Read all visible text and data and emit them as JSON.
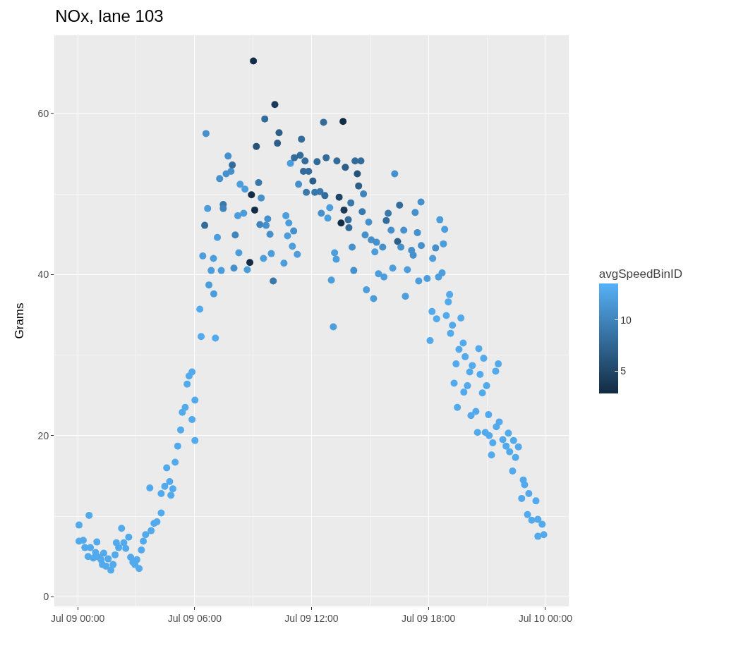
{
  "chart_data": {
    "type": "scatter",
    "title": "NOx, lane 103",
    "ylabel": "Grams",
    "clabel": "avgSpeedBinID",
    "marker": "circle",
    "grid": true,
    "xlim": [
      "--07-08T22:48",
      "--07-10T01:12"
    ],
    "xticks": [
      {
        "value": "--07-09T00:00",
        "label": "Jul 09 00:00"
      },
      {
        "value": "--07-09T06:00",
        "label": "Jul 09 06:00"
      },
      {
        "value": "--07-09T12:00",
        "label": "Jul 09 12:00"
      },
      {
        "value": "--07-09T18:00",
        "label": "Jul 09 18:00"
      },
      {
        "value": "--07-10T00:00",
        "label": "Jul 10 00:00"
      }
    ],
    "ylim": [
      -1.2,
      69.7
    ],
    "yticks": [
      0,
      20,
      40,
      60
    ],
    "clim": [
      2.8,
      13.6
    ],
    "cticks": [
      5,
      10
    ],
    "x": [
      "--07-09T00:04",
      "--07-09T00:04",
      "--07-09T00:17",
      "--07-09T00:22",
      "--07-09T00:35",
      "--07-09T00:32",
      "--07-09T00:39",
      "--07-09T00:48",
      "--07-09T00:55",
      "--07-09T00:59",
      "--07-09T01:05",
      "--07-09T01:12",
      "--07-09T01:16",
      "--07-09T01:20",
      "--07-09T01:27",
      "--07-09T01:34",
      "--07-09T01:42",
      "--07-09T01:49",
      "--07-09T01:55",
      "--07-09T01:59",
      "--07-09T02:06",
      "--07-09T02:15",
      "--07-09T02:22",
      "--07-09T02:28",
      "--07-09T02:37",
      "--07-09T02:43",
      "--07-09T02:50",
      "--07-09T02:56",
      "--07-09T03:02",
      "--07-09T03:09",
      "--07-09T03:16",
      "--07-09T03:22",
      "--07-09T03:29",
      "--07-09T03:42",
      "--07-09T03:46",
      "--07-09T03:55",
      "--07-09T04:04",
      "--07-09T04:17",
      "--07-09T04:17",
      "--07-09T04:28",
      "--07-09T04:34",
      "--07-09T04:43",
      "--07-09T04:47",
      "--07-09T04:53",
      "--07-09T05:00",
      "--07-09T05:08",
      "--07-09T05:17",
      "--07-09T05:22",
      "--07-09T05:31",
      "--07-09T05:37",
      "--07-09T05:43",
      "--07-09T05:52",
      "--07-09T06:01",
      "--07-09T06:01",
      "--07-09T05:52",
      "--07-09T06:16",
      "--07-09T06:20",
      "--07-09T06:25",
      "--07-09T06:31",
      "--07-09T06:35",
      "--07-09T06:40",
      "--07-09T06:44",
      "--07-09T06:51",
      "--07-09T06:58",
      "--07-09T06:59",
      "--07-09T07:04",
      "--07-09T07:10",
      "--07-09T07:17",
      "--07-09T07:22",
      "--07-09T07:28",
      "--07-09T07:28",
      "--07-09T07:37",
      "--07-09T07:43",
      "--07-09T07:52",
      "--07-09T07:56",
      "--07-09T08:01",
      "--07-09T08:05",
      "--07-09T08:16",
      "--07-09T08:13",
      "--07-09T08:20",
      "--07-09T08:31",
      "--07-09T08:35",
      "--07-09T08:42",
      "--07-09T08:50",
      "--07-09T08:55",
      "--07-09T09:01",
      "--07-09T09:05",
      "--07-09T09:10",
      "--07-09T09:17",
      "--07-09T09:21",
      "--07-09T09:25",
      "--07-09T09:32",
      "--07-09T09:36",
      "--07-09T09:40",
      "--07-09T09:45",
      "--07-09T09:52",
      "--07-09T09:56",
      "--07-09T10:02",
      "--07-09T10:07",
      "--07-09T10:15",
      "--07-09T10:20",
      "--07-09T10:35",
      "--07-09T10:41",
      "--07-09T10:46",
      "--07-09T10:50",
      "--07-09T10:55",
      "--07-09T11:01",
      "--07-09T11:05",
      "--07-09T11:07",
      "--07-09T11:16",
      "--07-09T11:20",
      "--07-09T11:25",
      "--07-09T11:29",
      "--07-09T11:35",
      "--07-09T11:40",
      "--07-09T11:44",
      "--07-09T11:51",
      "--07-09T12:04",
      "--07-09T12:10",
      "--07-09T12:17",
      "--07-09T12:26",
      "--07-09T12:30",
      "--07-09T12:37",
      "--07-09T12:41",
      "--07-09T12:45",
      "--07-09T12:50",
      "--07-09T12:56",
      "--07-09T13:01",
      "--07-09T13:07",
      "--07-09T13:11",
      "--07-09T13:16",
      "--07-09T13:18",
      "--07-09T13:25",
      "--07-09T13:31",
      "--07-09T13:37",
      "--07-09T13:40",
      "--07-09T13:44",
      "--07-09T13:53",
      "--07-09T13:55",
      "--07-09T14:01",
      "--07-09T14:05",
      "--07-09T14:10",
      "--07-09T14:14",
      "--07-09T14:25",
      "--07-09T14:21",
      "--07-09T14:32",
      "--07-09T14:36",
      "--07-09T14:40",
      "--07-09T14:45",
      "--07-09T14:49",
      "--07-09T14:56",
      "--07-09T15:04",
      "--07-09T15:11",
      "--07-09T15:15",
      "--07-09T15:20",
      "--07-09T15:26",
      "--07-09T15:39",
      "--07-09T15:43",
      "--07-09T15:50",
      "--07-09T15:56",
      "--07-09T16:05",
      "--07-09T16:16",
      "--07-09T16:25",
      "--07-09T16:31",
      "--07-09T16:35",
      "--07-09T16:10",
      "--07-09T16:44",
      "--07-09T16:49",
      "--07-09T16:55",
      "--07-09T17:08",
      "--07-09T17:13",
      "--07-09T17:19",
      "--07-09T17:26",
      "--07-09T17:30",
      "--07-09T17:37",
      "--07-09T17:38",
      "--07-09T17:56",
      "--07-09T18:05",
      "--07-09T18:11",
      "--07-09T18:13",
      "--07-09T18:22",
      "--07-09T18:25",
      "--07-09T18:35",
      "--07-09T18:42",
      "--07-09T18:46",
      "--07-09T18:50",
      "--07-09T18:31",
      "--07-09T18:55",
      "--07-09T19:01",
      "--07-09T19:05",
      "--07-09T19:14",
      "--07-09T19:08",
      "--07-09T19:40",
      "--07-09T19:47",
      "--07-09T19:34",
      "--07-09T20:35",
      "--07-09T19:53",
      "--07-09T20:50",
      "--07-09T19:25",
      "--07-09T20:15",
      "--07-09T21:35",
      "--07-09T21:27",
      "--07-09T20:07",
      "--07-09T20:39",
      "--07-09T19:19",
      "--07-09T20:00",
      "--07-09T19:49",
      "--07-09T20:59",
      "--07-09T20:46",
      "--07-09T19:29",
      "--07-09T20:26",
      "--07-09T20:11",
      "--07-09T21:05",
      "--07-09T21:38",
      "--07-09T21:29",
      "--07-09T20:31",
      "--07-09T20:55",
      "--07-09T21:07",
      "--07-09T21:18",
      "--07-09T22:06",
      "--07-09T21:49",
      "--07-09T21:59",
      "--07-09T22:22",
      "--07-09T22:37",
      "--07-09T22:10",
      "--07-09T22:28",
      "--07-09T21:14",
      "--07-09T22:19",
      "--07-09T22:52",
      "--07-09T22:56",
      "--07-09T23:09",
      "--07-09T22:47",
      "--07-09T23:31",
      "--07-09T23:05",
      "--07-09T23:18",
      "--07-09T23:37",
      "--07-09T23:50",
      "--07-09T23:37",
      "--07-09T23:55"
    ],
    "values": [
      8.9,
      6.9,
      7.0,
      6.1,
      10.1,
      5.0,
      6.1,
      4.8,
      5.5,
      6.8,
      4.9,
      4.6,
      4.0,
      5.4,
      3.8,
      4.7,
      3.3,
      4.0,
      5.2,
      6.7,
      6.1,
      8.5,
      6.7,
      6.0,
      7.4,
      4.9,
      4.3,
      4.0,
      4.6,
      3.5,
      5.8,
      6.9,
      7.7,
      13.5,
      8.2,
      9.1,
      9.3,
      10.4,
      12.8,
      13.7,
      16.0,
      14.3,
      12.6,
      13.4,
      16.7,
      18.7,
      20.7,
      22.9,
      23.5,
      26.4,
      27.4,
      27.9,
      24.4,
      19.4,
      22.0,
      35.7,
      32.3,
      42.3,
      46.1,
      57.5,
      48.2,
      38.7,
      40.5,
      42.0,
      37.6,
      32.1,
      44.6,
      51.9,
      40.5,
      48.7,
      48.2,
      52.5,
      54.7,
      52.8,
      53.6,
      40.8,
      44.9,
      42.7,
      47.3,
      51.2,
      47.6,
      50.6,
      40.6,
      41.5,
      49.9,
      66.5,
      48.0,
      55.9,
      51.4,
      46.2,
      49.5,
      42.0,
      59.3,
      46.1,
      46.9,
      45.0,
      42.6,
      39.2,
      61.1,
      56.3,
      57.6,
      41.4,
      47.3,
      44.8,
      46.4,
      53.8,
      43.5,
      45.4,
      54.5,
      42.5,
      51.2,
      54.8,
      56.8,
      52.8,
      54.1,
      50.2,
      52.8,
      51.6,
      50.2,
      54.0,
      50.3,
      47.6,
      58.9,
      49.8,
      54.5,
      47.0,
      48.3,
      39.3,
      33.5,
      42.7,
      41.9,
      54.1,
      49.6,
      46.4,
      59.0,
      48.0,
      53.3,
      46.8,
      45.8,
      48.9,
      43.4,
      40.5,
      54.1,
      51.0,
      52.5,
      54.1,
      47.8,
      50.0,
      44.9,
      38.1,
      46.5,
      44.3,
      37.0,
      42.8,
      44.0,
      40.1,
      43.4,
      39.7,
      46.7,
      47.6,
      45.5,
      52.5,
      44.1,
      48.6,
      43.4,
      40.8,
      45.5,
      37.3,
      40.6,
      43.0,
      42.4,
      47.7,
      45.2,
      39.2,
      49.0,
      43.6,
      39.5,
      31.8,
      35.4,
      42.0,
      43.3,
      34.5,
      46.8,
      40.2,
      43.8,
      45.6,
      39.7,
      34.9,
      36.6,
      37.5,
      33.7,
      32.7,
      34.6,
      31.5,
      30.7,
      30.8,
      29.8,
      29.6,
      28.9,
      28.7,
      28.9,
      28.0,
      27.9,
      27.6,
      26.5,
      26.2,
      25.4,
      26.2,
      25.3,
      23.5,
      23.0,
      22.5,
      22.6,
      21.7,
      21.1,
      20.4,
      20.4,
      20.0,
      19.1,
      20.3,
      19.5,
      18.7,
      19.4,
      18.6,
      18.0,
      17.3,
      17.6,
      15.6,
      14.5,
      13.9,
      12.8,
      12.2,
      11.9,
      10.2,
      9.5,
      9.6,
      9.0,
      7.5,
      7.7
    ],
    "cvalues": [
      13,
      13,
      13,
      13,
      13,
      13,
      13,
      13,
      13,
      13,
      13,
      13,
      13,
      13,
      13,
      13,
      13,
      13,
      13,
      13,
      13,
      13,
      13,
      13,
      13,
      13,
      13,
      13,
      13,
      13,
      13,
      13,
      13,
      13,
      13,
      13,
      13,
      13,
      13,
      13,
      13,
      13,
      13,
      13,
      13,
      13,
      13,
      13,
      13,
      13,
      13,
      13,
      13,
      13,
      13,
      13,
      13,
      12,
      8,
      11,
      12,
      12,
      12,
      12,
      12,
      13,
      12,
      11,
      12,
      9,
      10,
      11,
      11,
      11,
      8,
      11,
      10,
      12,
      12,
      12,
      12,
      12,
      12,
      3,
      3,
      3,
      3,
      6,
      9,
      10,
      11,
      12,
      8,
      11,
      11,
      11,
      12,
      9,
      4,
      7,
      7,
      12,
      12,
      12,
      12,
      12,
      12,
      11,
      8,
      12,
      11,
      8,
      8,
      8,
      8,
      9,
      8,
      7,
      9,
      8,
      9,
      11,
      8,
      8,
      8,
      12,
      12,
      12,
      12,
      12,
      12,
      8,
      5,
      3,
      3,
      4,
      7,
      8,
      8,
      9,
      11,
      11,
      8,
      7,
      6,
      8,
      9,
      10,
      11,
      12,
      11,
      11,
      12,
      12,
      11,
      12,
      11,
      12,
      8,
      9,
      11,
      11,
      7,
      8,
      11,
      12,
      11,
      12,
      12,
      11,
      11,
      11,
      11,
      12,
      11,
      11,
      12,
      13,
      13,
      12,
      11,
      13,
      12,
      12,
      12,
      12,
      12,
      13,
      13,
      13,
      13,
      13,
      13,
      13,
      13,
      13,
      13,
      13,
      13,
      13,
      13,
      13,
      13,
      13,
      13,
      13,
      13,
      13,
      13,
      13,
      13,
      13,
      13,
      13,
      13,
      13,
      13,
      13,
      13,
      13,
      13,
      13,
      13,
      13,
      13,
      13,
      13,
      13,
      13,
      13,
      13,
      13,
      13,
      13,
      13,
      13,
      13,
      13,
      13
    ]
  }
}
